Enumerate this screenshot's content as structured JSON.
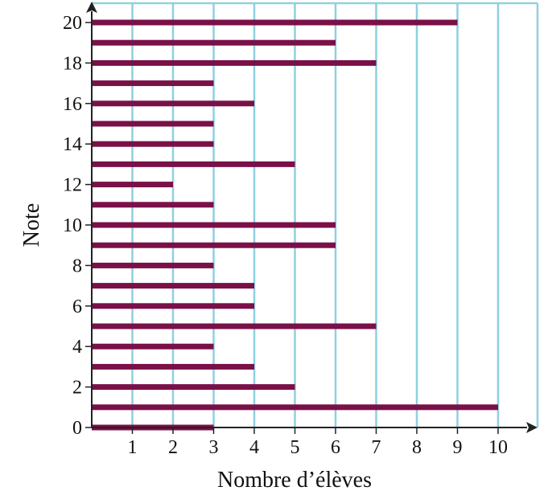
{
  "chart_data": {
    "type": "bar",
    "orientation": "horizontal",
    "xlabel": "Nombre d’élèves",
    "ylabel": "Note",
    "xlim": [
      0,
      11
    ],
    "ylim": [
      0,
      20
    ],
    "x_ticks": [
      "1",
      "2",
      "3",
      "4",
      "5",
      "6",
      "7",
      "8",
      "9",
      "10"
    ],
    "y_ticks": [
      "0",
      "2",
      "4",
      "6",
      "8",
      "10",
      "12",
      "14",
      "16",
      "18",
      "20"
    ],
    "grid": "vertical",
    "categories": [
      0,
      1,
      2,
      3,
      4,
      5,
      6,
      7,
      8,
      9,
      10,
      11,
      12,
      13,
      14,
      15,
      16,
      17,
      18,
      19,
      20
    ],
    "values": [
      3,
      10,
      5,
      4,
      3,
      7,
      4,
      4,
      3,
      6,
      6,
      3,
      2,
      5,
      3,
      3,
      4,
      3,
      7,
      6,
      9
    ],
    "colors": {
      "bar": "#7a1048",
      "grid": "#8fd0e0",
      "axis": "#222222"
    }
  }
}
